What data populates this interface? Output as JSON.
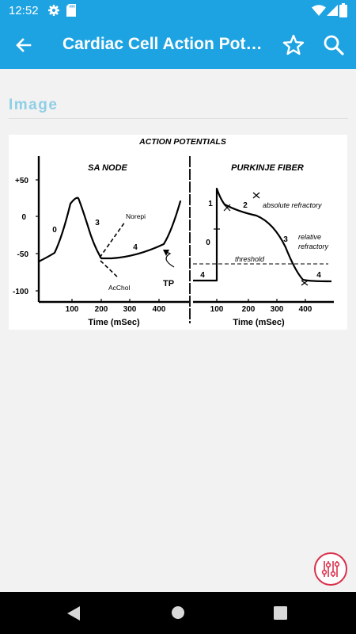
{
  "status_bar": {
    "time": "12:52",
    "icons": [
      "gear-icon",
      "sd-card-icon",
      "wifi-icon",
      "signal-icon",
      "battery-icon"
    ]
  },
  "app_bar": {
    "title": "Cardiac Cell Action Potentials",
    "icons": [
      "back-arrow-icon",
      "star-outline-icon",
      "search-icon"
    ]
  },
  "section": {
    "label": "Image"
  },
  "figure": {
    "title": "ACTION POTENTIALS",
    "sa_node": {
      "title": "SA NODE",
      "y_ticks": [
        "+50",
        "0",
        "-50",
        "-100"
      ],
      "x_ticks": [
        "100",
        "200",
        "300",
        "400"
      ],
      "xlabel": "Time (mSec)",
      "phase_labels": [
        "0",
        "3",
        "4"
      ],
      "annotations": {
        "norepi": "Norepi",
        "achol": "AcChol",
        "tp": "TP"
      }
    },
    "purkinje": {
      "title": "PURKINJE FIBER",
      "x_ticks": [
        "100",
        "200",
        "300",
        "400"
      ],
      "xlabel": "Time (mSec)",
      "phase_labels": [
        "1",
        "2",
        "0",
        "3",
        "4",
        "4"
      ],
      "annotations": {
        "absolute": "absolute refractory",
        "relative_1": "relative",
        "relative_2": "refractory",
        "threshold": "threshold"
      }
    }
  },
  "fab": {
    "icon": "equalizer-sliders-icon"
  },
  "nav_bar": {
    "icons": [
      "nav-back-icon",
      "nav-home-icon",
      "nav-recents-icon"
    ]
  },
  "colors": {
    "primary": "#1ea3e2",
    "section_label": "#8ecfe6",
    "fab_accent": "#d9304a",
    "background": "#f2f2f2"
  }
}
